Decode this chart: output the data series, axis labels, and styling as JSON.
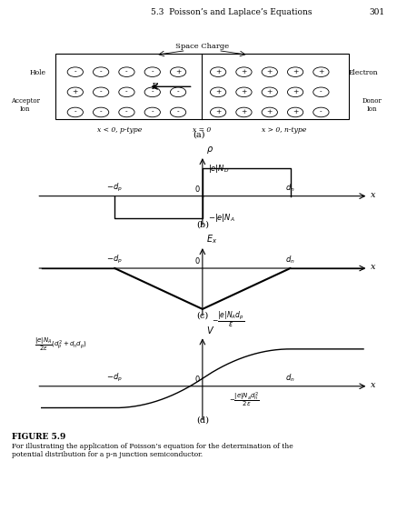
{
  "title_text": "5.3  Poisson’s and Laplace’s Equations",
  "page_num": "301",
  "fig_label": "FIGURE 5.9",
  "fig_caption": "For illustrating the application of Poisson’s equation for the determination of the\npotential distribution for a p-n junction semiconductor.",
  "panel_a_label": "(a)",
  "panel_b_label": "(b)",
  "panel_c_label": "(c)",
  "panel_d_label": "(d)",
  "space_charge_label": "Space Charge",
  "hole_label": "Hole",
  "electron_label": "Electron",
  "acceptor_label": "Acceptor\nIon",
  "donor_label": "Donor\nIon",
  "xlt0_label": "x < 0, p-type",
  "xeq0_label": "x = 0",
  "xgt0_label": "x > 0, n-type",
  "background_color": "#ffffff",
  "line_color": "#000000",
  "text_color": "#000000",
  "figsize": [
    4.37,
    5.73
  ],
  "dpi": 100
}
